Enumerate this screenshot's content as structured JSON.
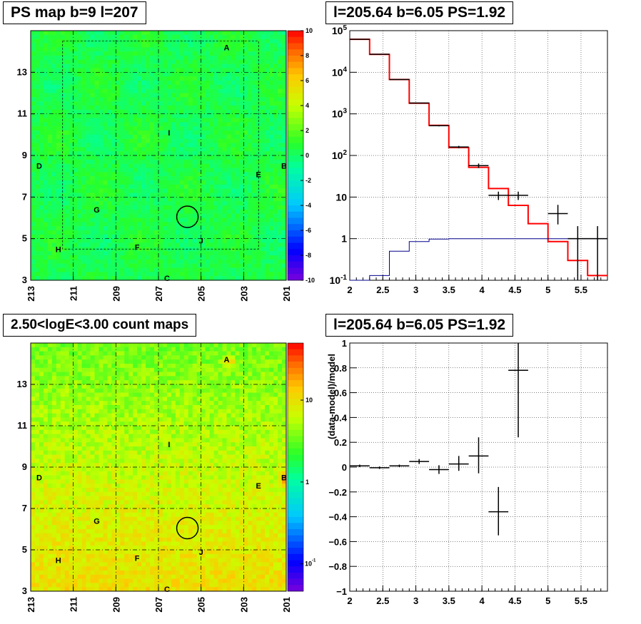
{
  "colors": {
    "data": "#000000",
    "model": "#ff0000",
    "aux": "#00008b"
  },
  "panels": {
    "tl": {
      "title": "PS map b=9 l=207"
    },
    "tr": {
      "title": "l=205.64 b=6.05 PS=1.92"
    },
    "bl": {
      "title": "2.50<logE<3.00 count maps"
    },
    "br": {
      "title": "l=205.64 b=6.05 PS=1.92"
    }
  },
  "chart_data": [
    {
      "type": "heatmap",
      "title": "PS map b=9 l=207",
      "x_ticks": [
        "213",
        "211",
        "209",
        "207",
        "205",
        "203",
        "201"
      ],
      "y_ticks": [
        "13",
        "11",
        "9",
        "7",
        "5",
        "3"
      ],
      "xlim": [
        213,
        201
      ],
      "ylim": [
        3,
        15
      ],
      "colorbar": {
        "min": -10,
        "max": 10,
        "ticks": [
          "10",
          "8",
          "6",
          "4",
          "2",
          "0",
          "-2",
          "-4",
          "-6",
          "-8",
          "-10"
        ]
      },
      "labels": [
        {
          "text": "A",
          "l": 203.8,
          "b": 14.2
        },
        {
          "text": "I",
          "l": 206.5,
          "b": 10.1
        },
        {
          "text": "D",
          "l": 212.6,
          "b": 8.5
        },
        {
          "text": "E",
          "l": 202.3,
          "b": 8.1
        },
        {
          "text": "B",
          "l": 201.1,
          "b": 8.5
        },
        {
          "text": "G",
          "l": 209.9,
          "b": 6.4
        },
        {
          "text": "F",
          "l": 208.0,
          "b": 4.6
        },
        {
          "text": "J",
          "l": 205.0,
          "b": 4.9
        },
        {
          "text": "H",
          "l": 211.7,
          "b": 4.5
        },
        {
          "text": "C",
          "l": 206.6,
          "b": 3.1
        }
      ],
      "marker": {
        "l": 205.64,
        "b": 6.05
      }
    },
    {
      "type": "line",
      "title": "l=205.64 b=6.05 PS=1.92",
      "xlabel": "",
      "ylabel": "",
      "xlim": [
        2,
        5.9
      ],
      "ylim": [
        0.1,
        100000
      ],
      "yscale": "log",
      "x_ticks": [
        "2",
        "2.5",
        "3",
        "3.5",
        "4",
        "4.5",
        "5",
        "5.5"
      ],
      "y_ticks": [
        "10^5",
        "10^4",
        "10^3",
        "10^2",
        "10",
        "1",
        "10^-1"
      ],
      "grid": true,
      "series": [
        {
          "style": "step",
          "color": "model",
          "edges": [
            2.0,
            2.3,
            2.6,
            2.9,
            3.2,
            3.5,
            3.8,
            4.1,
            4.4,
            4.7,
            5.0,
            5.3,
            5.6,
            5.9
          ],
          "values": [
            62000,
            27000,
            6700,
            1800,
            530,
            155,
            52,
            16,
            6.3,
            2.3,
            0.85,
            0.3,
            0.13
          ]
        },
        {
          "style": "step",
          "color": "aux",
          "edges": [
            2.0,
            2.3,
            2.6,
            2.9,
            3.2,
            3.5,
            3.8,
            4.1,
            4.4,
            4.7,
            5.0,
            5.3,
            5.6,
            5.9
          ],
          "values": [
            0.1,
            0.13,
            0.5,
            0.85,
            0.98,
            1.0,
            1.0,
            1.0,
            1.0,
            1.0,
            1.0,
            1.0,
            1.0
          ]
        },
        {
          "style": "errorbar",
          "color": "data",
          "points": [
            {
              "x": 2.15,
              "y": 62000,
              "lo": 61500,
              "hi": 62500
            },
            {
              "x": 2.45,
              "y": 27000,
              "lo": 26800,
              "hi": 27200
            },
            {
              "x": 2.75,
              "y": 6700,
              "lo": 6600,
              "hi": 6800
            },
            {
              "x": 3.05,
              "y": 1820,
              "lo": 1780,
              "hi": 1860
            },
            {
              "x": 3.35,
              "y": 520,
              "lo": 500,
              "hi": 540
            },
            {
              "x": 3.65,
              "y": 160,
              "lo": 150,
              "hi": 170
            },
            {
              "x": 3.95,
              "y": 57,
              "lo": 50,
              "hi": 64
            },
            {
              "x": 4.25,
              "y": 11,
              "lo": 8.5,
              "hi": 13.5
            },
            {
              "x": 4.55,
              "y": 11,
              "lo": 8.5,
              "hi": 13.5
            },
            {
              "x": 5.15,
              "y": 4,
              "lo": 2.2,
              "hi": 6.5
            },
            {
              "x": 5.45,
              "y": 1,
              "lo": 0.1,
              "hi": 2.0
            },
            {
              "x": 5.75,
              "y": 1,
              "lo": 0.1,
              "hi": 2.0
            }
          ]
        }
      ]
    },
    {
      "type": "heatmap",
      "title": "2.50<logE<3.00 count maps",
      "x_ticks": [
        "213",
        "211",
        "209",
        "207",
        "205",
        "203",
        "201"
      ],
      "y_ticks": [
        "13",
        "11",
        "9",
        "7",
        "5",
        "3"
      ],
      "xlim": [
        213,
        201
      ],
      "ylim": [
        3,
        15
      ],
      "colorbar": {
        "scale": "log",
        "ticks": [
          "10",
          "1",
          "10^-1"
        ]
      },
      "labels": [
        {
          "text": "A",
          "l": 203.8,
          "b": 14.2
        },
        {
          "text": "I",
          "l": 206.5,
          "b": 10.1
        },
        {
          "text": "D",
          "l": 212.6,
          "b": 8.5
        },
        {
          "text": "E",
          "l": 202.3,
          "b": 8.1
        },
        {
          "text": "B",
          "l": 201.1,
          "b": 8.5
        },
        {
          "text": "G",
          "l": 209.9,
          "b": 6.4
        },
        {
          "text": "F",
          "l": 208.0,
          "b": 4.6
        },
        {
          "text": "J",
          "l": 205.0,
          "b": 4.9
        },
        {
          "text": "H",
          "l": 211.7,
          "b": 4.5
        },
        {
          "text": "C",
          "l": 206.6,
          "b": 3.1
        }
      ],
      "marker": {
        "l": 205.64,
        "b": 6.05
      }
    },
    {
      "type": "scatter",
      "title": "l=205.64 b=6.05 PS=1.92",
      "xlabel": "",
      "ylabel": "(data-model)/model",
      "xlim": [
        2,
        5.9
      ],
      "ylim": [
        -1,
        1
      ],
      "x_ticks": [
        "2",
        "2.5",
        "3",
        "3.5",
        "4",
        "4.5",
        "5",
        "5.5"
      ],
      "y_ticks": [
        "1",
        "0.8",
        "0.6",
        "0.4",
        "0.2",
        "0",
        "-0.2",
        "-0.4",
        "-0.6",
        "-0.8",
        "-1"
      ],
      "grid": true,
      "points": [
        {
          "x": 2.15,
          "y": 0.01,
          "xerr": 0.15,
          "lo": 0.0,
          "hi": 0.02
        },
        {
          "x": 2.45,
          "y": -0.005,
          "xerr": 0.15,
          "lo": -0.015,
          "hi": 0.005
        },
        {
          "x": 2.75,
          "y": 0.01,
          "xerr": 0.15,
          "lo": 0.0,
          "hi": 0.02
        },
        {
          "x": 3.05,
          "y": 0.045,
          "xerr": 0.15,
          "lo": 0.025,
          "hi": 0.065
        },
        {
          "x": 3.35,
          "y": -0.02,
          "xerr": 0.15,
          "lo": -0.055,
          "hi": 0.015
        },
        {
          "x": 3.65,
          "y": 0.025,
          "xerr": 0.15,
          "lo": -0.03,
          "hi": 0.09
        },
        {
          "x": 3.95,
          "y": 0.09,
          "xerr": 0.15,
          "lo": -0.05,
          "hi": 0.24
        },
        {
          "x": 4.25,
          "y": -0.36,
          "xerr": 0.15,
          "lo": -0.55,
          "hi": -0.16
        },
        {
          "x": 4.55,
          "y": 0.78,
          "xerr": 0.15,
          "lo": 0.24,
          "hi": 1.0
        }
      ]
    }
  ]
}
